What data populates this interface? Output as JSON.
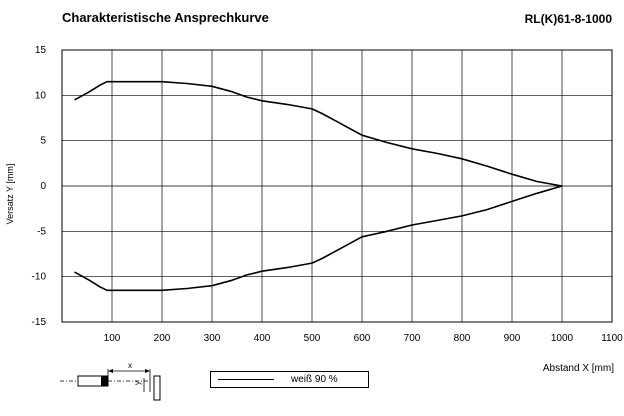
{
  "header": {
    "title": "Charakteristische Ansprechkurve",
    "model": "RL(K)61-8-1000"
  },
  "legend": {
    "label": "weiß 90 %"
  },
  "diagram": {
    "x_label": "x",
    "y_label": "y"
  },
  "chart_data": {
    "type": "line",
    "title": "Charakteristische Ansprechkurve",
    "xlabel": "Abstand X [mm]",
    "ylabel": "Versatz Y [mm]",
    "xlim": [
      0,
      1100
    ],
    "ylim": [
      -15,
      15
    ],
    "xticks": [
      100,
      200,
      300,
      400,
      500,
      600,
      700,
      800,
      900,
      1000,
      1100
    ],
    "yticks": [
      15,
      10,
      5,
      0,
      -5,
      -10,
      -15
    ],
    "grid": true,
    "series": [
      {
        "name": "weiß 90 %",
        "x": [
          25,
          55,
          75,
          90,
          100,
          200,
          250,
          300,
          340,
          370,
          400,
          450,
          500,
          520,
          550,
          600,
          650,
          700,
          750,
          800,
          850,
          900,
          950,
          1000,
          950,
          900,
          850,
          800,
          750,
          700,
          650,
          600,
          550,
          520,
          500,
          450,
          400,
          370,
          340,
          300,
          250,
          200,
          100,
          90,
          75,
          55,
          25
        ],
        "y": [
          9.5,
          10.4,
          11.1,
          11.5,
          11.5,
          11.5,
          11.3,
          11.0,
          10.4,
          9.8,
          9.4,
          9.0,
          8.5,
          8.0,
          7.1,
          5.6,
          4.8,
          4.1,
          3.6,
          3.0,
          2.2,
          1.3,
          0.5,
          0.0,
          -0.8,
          -1.7,
          -2.6,
          -3.3,
          -3.8,
          -4.3,
          -5.0,
          -5.6,
          -7.1,
          -8.0,
          -8.5,
          -9.0,
          -9.4,
          -9.8,
          -10.4,
          -11.0,
          -11.3,
          -11.5,
          -11.5,
          -11.5,
          -11.1,
          -10.4,
          -9.5
        ]
      }
    ]
  }
}
